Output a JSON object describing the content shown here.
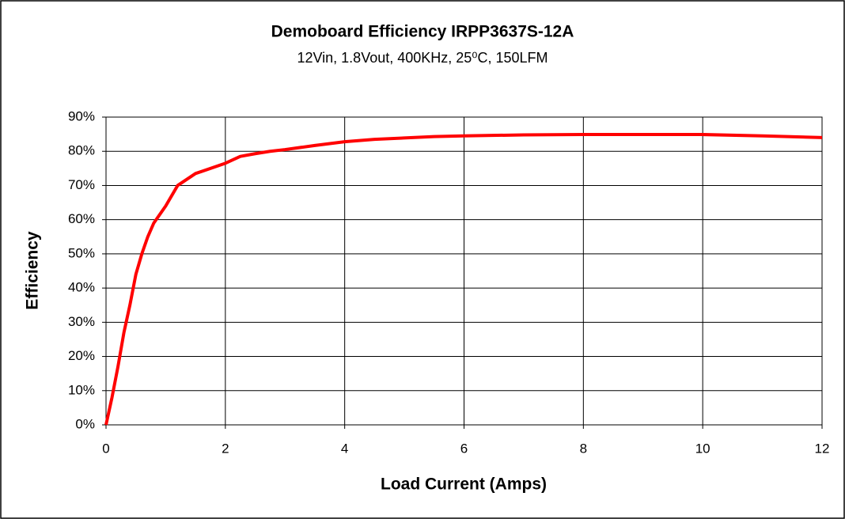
{
  "chart_data": {
    "type": "line",
    "title": "Demoboard Efficiency IRPP3637S-12A",
    "subtitle": "12Vin, 1.8Vout, 400KHz, 25⁰C, 150LFM",
    "x_label": "Load Current (Amps)",
    "y_label": "Efficiency",
    "x": [
      0,
      0.1,
      0.2,
      0.3,
      0.4,
      0.5,
      0.6,
      0.7,
      0.8,
      1.0,
      1.2,
      1.5,
      2.0,
      2.25,
      2.5,
      2.75,
      3.0,
      3.5,
      4.0,
      4.5,
      5.5,
      6.0,
      7.0,
      8.0,
      9.0,
      10.0,
      11.0,
      12.0
    ],
    "values": [
      0,
      8,
      17,
      27,
      35,
      44,
      50,
      55,
      59,
      64,
      70,
      73.5,
      76.5,
      78.5,
      79.3,
      80,
      80.5,
      81.7,
      82.8,
      83.5,
      84.3,
      84.5,
      84.8,
      84.9,
      84.9,
      84.9,
      84.5,
      84
    ],
    "color": "#ff0000",
    "xlim": [
      0,
      12
    ],
    "xticks": [
      0,
      2,
      4,
      6,
      8,
      10,
      12
    ],
    "ylim": [
      0,
      90
    ],
    "yticks": [
      {
        "value": 0,
        "label": "0%"
      },
      {
        "value": 10,
        "label": "10%"
      },
      {
        "value": 20,
        "label": "20%"
      },
      {
        "value": 30,
        "label": "30%"
      },
      {
        "value": 40,
        "label": "40%"
      },
      {
        "value": 50,
        "label": "50%"
      },
      {
        "value": 60,
        "label": "60%"
      },
      {
        "value": 70,
        "label": "70%"
      },
      {
        "value": 80,
        "label": "80%"
      },
      {
        "value": 90,
        "label": "90%"
      }
    ],
    "grid": true
  }
}
